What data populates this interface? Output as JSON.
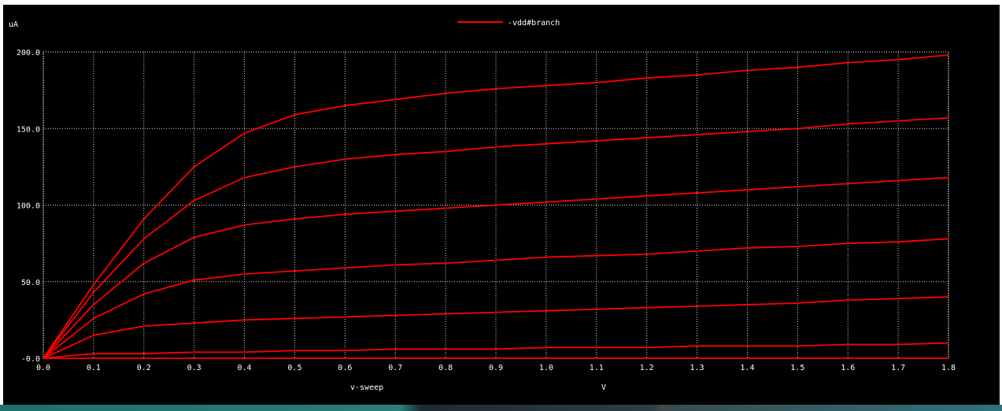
{
  "chart_data": {
    "type": "line",
    "ylabel": "uA",
    "xlabel": "v-sweep",
    "x_unit": "V",
    "legend": "top-center",
    "grid": true,
    "xlim": [
      0,
      1.8
    ],
    "ylim": [
      0,
      200
    ],
    "x_ticks": [
      "0.0",
      "0.1",
      "0.2",
      "0.3",
      "0.4",
      "0.5",
      "0.6",
      "0.7",
      "0.8",
      "0.9",
      "1.0",
      "1.1",
      "1.2",
      "1.3",
      "1.4",
      "1.5",
      "1.6",
      "1.7",
      "1.8"
    ],
    "y_ticks": [
      "-0.0",
      "50.0",
      "100.0",
      "150.0",
      "200.0"
    ],
    "x": [
      0.0,
      0.1,
      0.2,
      0.3,
      0.4,
      0.5,
      0.6,
      0.7,
      0.8,
      0.9,
      1.0,
      1.1,
      1.2,
      1.3,
      1.4,
      1.5,
      1.6,
      1.7,
      1.8
    ],
    "series": [
      {
        "name": "-vdd#branch",
        "color": "#ff0000",
        "values": [
          0,
          48,
          91,
          125,
          147,
          159,
          165,
          169,
          173,
          176,
          178,
          180,
          183,
          185,
          188,
          190,
          193,
          195,
          198
        ]
      },
      {
        "color": "#ff0000",
        "values": [
          0,
          43,
          78,
          103,
          118,
          125,
          130,
          133,
          135,
          138,
          140,
          142,
          144,
          146,
          148,
          150,
          153,
          155,
          157
        ]
      },
      {
        "color": "#ff0000",
        "values": [
          0,
          35,
          62,
          79,
          87,
          91,
          94,
          96,
          98,
          100,
          102,
          104,
          106,
          108,
          110,
          112,
          114,
          116,
          118
        ]
      },
      {
        "color": "#ff0000",
        "values": [
          0,
          26,
          42,
          51,
          55,
          57,
          59,
          61,
          62,
          64,
          66,
          67,
          68,
          70,
          72,
          73,
          75,
          76,
          78
        ]
      },
      {
        "color": "#ff0000",
        "values": [
          0,
          15,
          21,
          23,
          25,
          26,
          27,
          28,
          29,
          30,
          31,
          32,
          33,
          34,
          35,
          36,
          38,
          39,
          40
        ]
      },
      {
        "color": "#ff0000",
        "values": [
          0,
          3,
          3,
          4,
          4,
          5,
          5,
          6,
          6,
          6,
          7,
          7,
          7,
          8,
          8,
          8,
          9,
          9,
          10
        ]
      },
      {
        "color": "#ff0000",
        "values": [
          0,
          0,
          0,
          0,
          0,
          0,
          0,
          0,
          0,
          0,
          0,
          0,
          0,
          0,
          0,
          0,
          0,
          0,
          0
        ]
      }
    ]
  }
}
